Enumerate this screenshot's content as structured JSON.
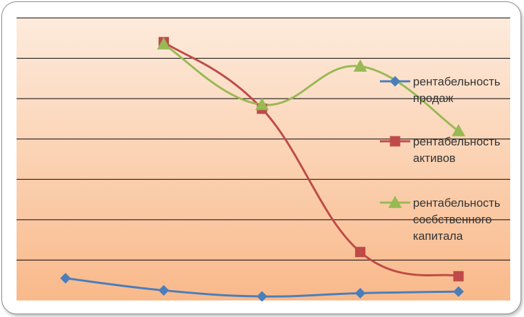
{
  "chart_data": {
    "type": "line",
    "title": "",
    "xlabel": "",
    "ylabel": "",
    "x": [
      1,
      2,
      3,
      4,
      5
    ],
    "ylim": [
      0,
      7
    ],
    "grid": true,
    "legend_position": "right",
    "smooth": true,
    "background": "gradient-peach",
    "series": [
      {
        "name": "рентабельность продаж",
        "name_lines": [
          "рентабельность",
          "продаж"
        ],
        "color": "#4a7ebb",
        "marker": "diamond",
        "values": [
          0.55,
          0.25,
          0.1,
          0.18,
          0.22
        ]
      },
      {
        "name": "рентабельность активов",
        "name_lines": [
          "рентабельность",
          "активов"
        ],
        "color": "#be4b48",
        "marker": "square",
        "values": [
          null,
          6.4,
          4.75,
          1.2,
          0.6
        ]
      },
      {
        "name": "рентабельность собственного капитала",
        "name_lines": [
          "рентабельность",
          "сосбственного",
          "капитала"
        ],
        "color": "#98b954",
        "marker": "triangle",
        "values": [
          null,
          6.35,
          4.85,
          5.8,
          4.2
        ]
      }
    ]
  }
}
